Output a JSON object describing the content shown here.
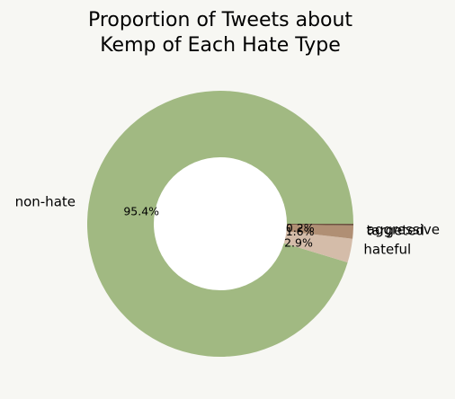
{
  "chart_data": {
    "type": "pie",
    "variant": "donut",
    "title": [
      "Proportion of Tweets about",
      "Kemp of Each Hate Type"
    ],
    "slices": [
      {
        "label": "non-hate",
        "value": 95.4,
        "pct_label": "95.4%",
        "color": "#a1b982"
      },
      {
        "label": "hateful",
        "value": 2.9,
        "pct_label": "2.9%",
        "color": "#d4bca9"
      },
      {
        "label": "targeted",
        "value": 1.6,
        "pct_label": "1.6%",
        "color": "#b08f74"
      },
      {
        "label": "aggressive",
        "value": 0.2,
        "pct_label": "0.2%",
        "color": "#6e5440"
      }
    ],
    "center_color": "#ffffff",
    "background": "#f7f7f3"
  }
}
